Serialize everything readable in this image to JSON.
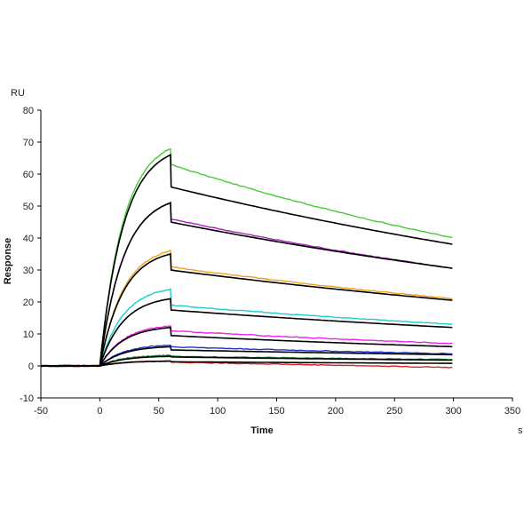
{
  "chart_data": {
    "type": "line",
    "title": "",
    "xlabel": "Time",
    "ylabel": "Response",
    "y_unit": "RU",
    "x_unit": "s",
    "xlim": [
      -50,
      350
    ],
    "ylim": [
      -10,
      80
    ],
    "x_ticks": [
      "-50",
      "0",
      "50",
      "100",
      "150",
      "200",
      "250",
      "300",
      "350"
    ],
    "y_ticks": [
      "-10",
      "0",
      "10",
      "20",
      "30",
      "40",
      "50",
      "60",
      "70",
      "80"
    ],
    "grid": false,
    "legend": "none",
    "association_end": 60,
    "dissociation_end": 300,
    "series": [
      {
        "color": "#44cc33",
        "measured": {
          "peak": 68,
          "dissoc_start": 63,
          "end": 40
        },
        "fit": {
          "peak": 66,
          "dissoc_start": 56,
          "end": 38
        }
      },
      {
        "color": "#aa22bb",
        "measured": {
          "peak": 51,
          "dissoc_start": 46,
          "end": 30.5
        },
        "fit": {
          "peak": 51,
          "dissoc_start": 45,
          "end": 30.5
        }
      },
      {
        "color": "#f0a020",
        "measured": {
          "peak": 36,
          "dissoc_start": 31,
          "end": 21
        },
        "fit": {
          "peak": 35,
          "dissoc_start": 30,
          "end": 20.5
        }
      },
      {
        "color": "#22cccc",
        "measured": {
          "peak": 24,
          "dissoc_start": 19,
          "end": 13
        },
        "fit": {
          "peak": 21,
          "dissoc_start": 17.5,
          "end": 12
        }
      },
      {
        "color": "#ee22ee",
        "measured": {
          "peak": 12.5,
          "dissoc_start": 11,
          "end": 7
        },
        "fit": {
          "peak": 12,
          "dissoc_start": 9.5,
          "end": 6
        }
      },
      {
        "color": "#2233cc",
        "measured": {
          "peak": 6.5,
          "dissoc_start": 6,
          "end": 3.8
        },
        "fit": {
          "peak": 6,
          "dissoc_start": 5,
          "end": 3.5
        }
      },
      {
        "color": "#228833",
        "measured": {
          "peak": 3.3,
          "dissoc_start": 3,
          "end": 2
        },
        "fit": {
          "peak": 3,
          "dissoc_start": 2.8,
          "end": 1.8
        }
      },
      {
        "color": "#dd2222",
        "measured": {
          "peak": 1.5,
          "dissoc_start": 1.2,
          "end": -0.5
        },
        "fit": {
          "peak": 1.5,
          "dissoc_start": 1.3,
          "end": 0.8
        }
      }
    ]
  }
}
